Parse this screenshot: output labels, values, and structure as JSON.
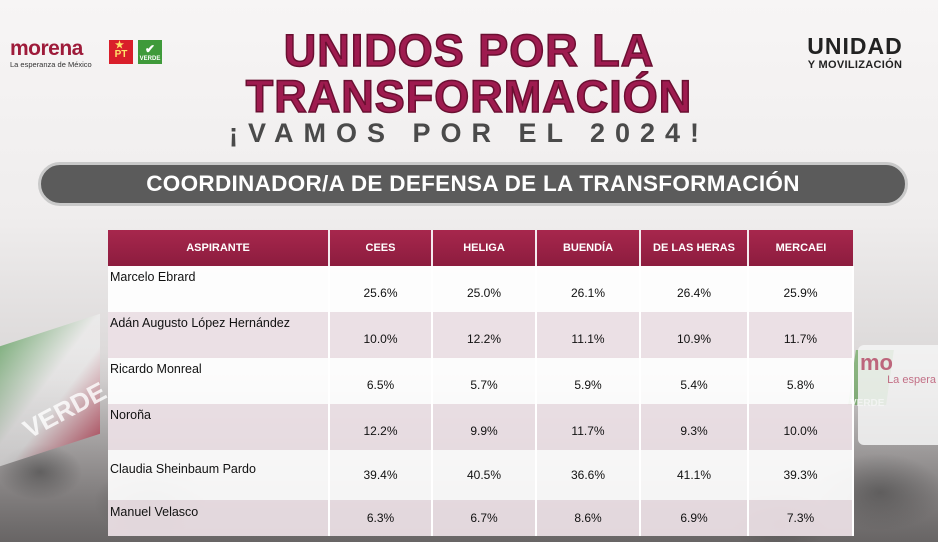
{
  "header": {
    "morena_word": "morena",
    "morena_tagline": "La esperanza de México",
    "pt_logo": "PT",
    "verde_logo": "VERDE",
    "title_line1": "UNIDOS POR LA",
    "title_line2": "TRANSFORMACIÓN",
    "subtitle": "¡VAMOS POR EL 2024!",
    "unidad_top": "UNIDAD",
    "unidad_bottom": "Y MOVILIZACIÓN"
  },
  "banner": "COORDINADOR/A DE DEFENSA DE LA TRANSFORMACIÓN",
  "background": {
    "left_flag_text": "VERDE",
    "right_flag_text": "mo",
    "right_flag_sub": "La espera",
    "green_flag_text": "VERDE"
  },
  "table": {
    "headers": [
      "ASPIRANTE",
      "CEES",
      "HELIGA",
      "BUENDÍA",
      "DE LAS HERAS",
      "MERCAEI"
    ],
    "rows": [
      {
        "name": "Marcelo Ebrard",
        "values": [
          "25.6%",
          "25.0%",
          "26.1%",
          "26.4%",
          "25.9%"
        ]
      },
      {
        "name": "Adán Augusto López Hernández",
        "values": [
          "10.0%",
          "12.2%",
          "11.1%",
          "10.9%",
          "11.7%"
        ]
      },
      {
        "name": "Ricardo Monreal",
        "values": [
          "6.5%",
          "5.7%",
          "5.9%",
          "5.4%",
          "5.8%"
        ]
      },
      {
        "name": "Noroña",
        "values": [
          "12.2%",
          "9.9%",
          "11.7%",
          "9.3%",
          "10.0%"
        ]
      },
      {
        "name": "Claudia Sheinbaum Pardo",
        "values": [
          "39.4%",
          "40.5%",
          "36.6%",
          "41.1%",
          "39.3%"
        ]
      },
      {
        "name": "Manuel Velasco",
        "values": [
          "6.3%",
          "6.7%",
          "8.6%",
          "6.9%",
          "7.3%"
        ]
      }
    ]
  },
  "colors": {
    "brand": "#9e1b4f",
    "header_row": "#9a2246",
    "banner": "#5b5b5b"
  }
}
